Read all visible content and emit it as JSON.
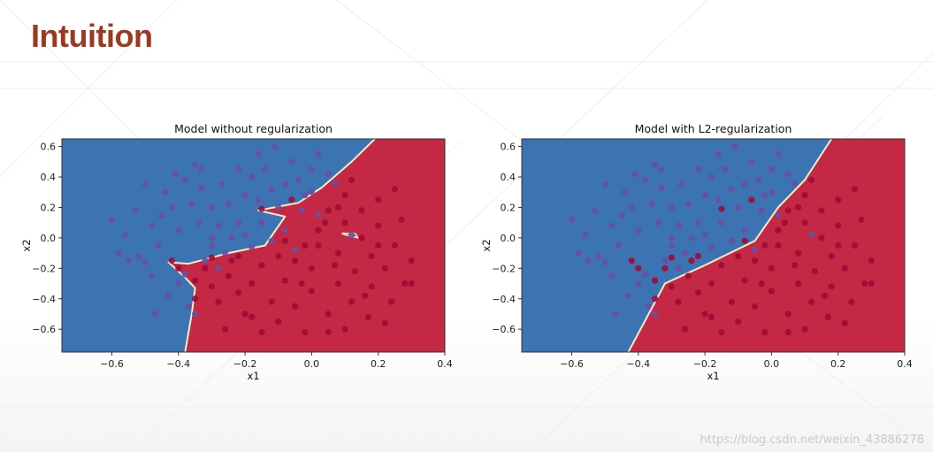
{
  "slide": {
    "title": "Intuition",
    "watermark": "https://blog.csdn.net/weixin_43886278"
  },
  "colors": {
    "title": "#9b3a22",
    "region_blue": "#3b73b3",
    "region_red": "#c42845",
    "boundary": "#f1eec4",
    "point_blue": "#6b4fa0",
    "point_red": "#a00b36"
  },
  "chart_data": [
    {
      "type": "scatter",
      "title": "Model without regularization",
      "xlabel": "x1",
      "ylabel": "x2",
      "xlim": [
        -0.75,
        0.4
      ],
      "ylim": [
        -0.75,
        0.65
      ],
      "xticks": [
        -0.6,
        -0.4,
        -0.2,
        0.0,
        0.2,
        0.4
      ],
      "yticks": [
        -0.6,
        -0.4,
        -0.2,
        0.0,
        0.2,
        0.4,
        0.6
      ],
      "xtick_labels": [
        "−0.6",
        "−0.4",
        "−0.2",
        "0.0",
        "0.2",
        "0.4"
      ],
      "ytick_labels": [
        "−0.6",
        "−0.4",
        "−0.2",
        "0.0",
        "0.2",
        "0.4",
        "0.6"
      ],
      "decision_boundary": [
        [
          -0.38,
          -0.75
        ],
        [
          -0.36,
          -0.5
        ],
        [
          -0.35,
          -0.33
        ],
        [
          -0.38,
          -0.26
        ],
        [
          -0.43,
          -0.16
        ],
        [
          -0.37,
          -0.17
        ],
        [
          -0.25,
          -0.1
        ],
        [
          -0.14,
          -0.05
        ],
        [
          -0.08,
          0.14
        ],
        [
          -0.16,
          0.18
        ],
        [
          -0.04,
          0.23
        ],
        [
          0.03,
          0.33
        ],
        [
          0.12,
          0.5
        ],
        [
          0.19,
          0.65
        ]
      ],
      "decision_island": [
        [
          0.09,
          0.03
        ],
        [
          0.13,
          0.03
        ],
        [
          0.14,
          0.0
        ],
        [
          0.1,
          0.02
        ]
      ],
      "regions": {
        "upper_left": "blue",
        "lower_right": "red"
      }
    },
    {
      "type": "scatter",
      "title": "Model with L2-regularization",
      "xlabel": "x1",
      "ylabel": "x2",
      "xlim": [
        -0.75,
        0.4
      ],
      "ylim": [
        -0.75,
        0.65
      ],
      "xticks": [
        -0.6,
        -0.4,
        -0.2,
        0.0,
        0.2,
        0.4
      ],
      "yticks": [
        -0.6,
        -0.4,
        -0.2,
        0.0,
        0.2,
        0.4,
        0.6
      ],
      "xtick_labels": [
        "−0.6",
        "−0.4",
        "−0.2",
        "0.0",
        "0.2",
        "0.4"
      ],
      "ytick_labels": [
        "−0.6",
        "−0.4",
        "−0.2",
        "0.0",
        "0.2",
        "0.4",
        "0.6"
      ],
      "decision_boundary": [
        [
          -0.43,
          -0.75
        ],
        [
          -0.32,
          -0.3
        ],
        [
          -0.2,
          -0.18
        ],
        [
          -0.05,
          -0.02
        ],
        [
          0.02,
          0.2
        ],
        [
          0.1,
          0.38
        ],
        [
          0.18,
          0.65
        ]
      ],
      "regions": {
        "upper_left": "blue",
        "lower_right": "red"
      }
    }
  ],
  "points": {
    "blue": [
      [
        -0.6,
        0.12
      ],
      [
        -0.56,
        0.02
      ],
      [
        -0.53,
        0.18
      ],
      [
        -0.5,
        0.35
      ],
      [
        -0.48,
        0.08
      ],
      [
        -0.46,
        -0.05
      ],
      [
        -0.52,
        -0.12
      ],
      [
        -0.5,
        -0.16
      ],
      [
        -0.48,
        -0.25
      ],
      [
        -0.44,
        0.3
      ],
      [
        -0.42,
        0.2
      ],
      [
        -0.4,
        0.05
      ],
      [
        -0.38,
        0.38
      ],
      [
        -0.36,
        0.22
      ],
      [
        -0.34,
        0.1
      ],
      [
        -0.35,
        0.48
      ],
      [
        -0.33,
        0.33
      ],
      [
        -0.3,
        0.2
      ],
      [
        -0.28,
        0.08
      ],
      [
        -0.3,
        -0.05
      ],
      [
        -0.32,
        -0.15
      ],
      [
        -0.27,
        0.35
      ],
      [
        -0.25,
        0.22
      ],
      [
        -0.22,
        0.1
      ],
      [
        -0.24,
        0.0
      ],
      [
        -0.2,
        0.28
      ],
      [
        -0.18,
        0.4
      ],
      [
        -0.16,
        0.55
      ],
      [
        -0.14,
        0.45
      ],
      [
        -0.12,
        0.32
      ],
      [
        -0.1,
        0.2
      ],
      [
        -0.08,
        0.05
      ],
      [
        -0.12,
        -0.02
      ],
      [
        -0.06,
        0.5
      ],
      [
        -0.04,
        0.38
      ],
      [
        -0.02,
        0.28
      ],
      [
        0.0,
        0.45
      ],
      [
        0.02,
        0.55
      ],
      [
        0.05,
        0.42
      ],
      [
        -0.15,
        0.1
      ],
      [
        -0.2,
        0.02
      ],
      [
        -0.26,
        -0.1
      ],
      [
        -0.33,
        0.45
      ],
      [
        -0.45,
        0.15
      ],
      [
        -0.55,
        -0.15
      ],
      [
        -0.58,
        -0.1
      ],
      [
        -0.4,
        -0.3
      ],
      [
        -0.43,
        -0.38
      ],
      [
        -0.37,
        -0.45
      ],
      [
        -0.35,
        -0.5
      ],
      [
        -0.47,
        -0.5
      ],
      [
        -0.38,
        -0.24
      ],
      [
        -0.16,
        0.25
      ],
      [
        -0.08,
        0.35
      ],
      [
        0.02,
        0.15
      ],
      [
        -0.03,
        0.18
      ],
      [
        0.12,
        0.02
      ],
      [
        -0.18,
        -0.06
      ],
      [
        0.07,
        0.36
      ],
      [
        -0.05,
        -0.08
      ],
      [
        -0.3,
        0.0
      ],
      [
        -0.22,
        0.45
      ],
      [
        -0.41,
        0.42
      ],
      [
        -0.11,
        0.6
      ],
      [
        -0.28,
        -0.2
      ],
      [
        0.0,
        0.3
      ]
    ],
    "red": [
      [
        -0.42,
        -0.15
      ],
      [
        -0.4,
        -0.2
      ],
      [
        -0.35,
        -0.28
      ],
      [
        -0.3,
        -0.32
      ],
      [
        -0.28,
        -0.42
      ],
      [
        -0.3,
        -0.13
      ],
      [
        -0.25,
        -0.25
      ],
      [
        -0.22,
        -0.36
      ],
      [
        -0.2,
        -0.5
      ],
      [
        -0.18,
        -0.3
      ],
      [
        -0.15,
        -0.18
      ],
      [
        -0.15,
        0.19
      ],
      [
        -0.12,
        -0.42
      ],
      [
        -0.1,
        -0.55
      ],
      [
        -0.08,
        -0.28
      ],
      [
        -0.05,
        -0.15
      ],
      [
        -0.05,
        -0.45
      ],
      [
        -0.02,
        -0.62
      ],
      [
        0.0,
        -0.35
      ],
      [
        0.0,
        -0.2
      ],
      [
        0.02,
        -0.05
      ],
      [
        0.02,
        0.05
      ],
      [
        0.05,
        0.18
      ],
      [
        0.05,
        -0.5
      ],
      [
        0.08,
        -0.3
      ],
      [
        0.08,
        -0.1
      ],
      [
        0.1,
        0.1
      ],
      [
        0.1,
        0.28
      ],
      [
        0.12,
        -0.42
      ],
      [
        0.13,
        -0.22
      ],
      [
        0.15,
        0.0
      ],
      [
        0.15,
        0.18
      ],
      [
        0.18,
        -0.32
      ],
      [
        0.18,
        -0.12
      ],
      [
        0.2,
        0.08
      ],
      [
        0.2,
        0.25
      ],
      [
        0.22,
        -0.2
      ],
      [
        0.24,
        -0.42
      ],
      [
        0.25,
        -0.05
      ],
      [
        0.27,
        0.12
      ],
      [
        0.28,
        -0.3
      ],
      [
        0.3,
        -0.15
      ],
      [
        0.3,
        -0.3
      ],
      [
        -0.26,
        -0.6
      ],
      [
        -0.15,
        -0.62
      ],
      [
        0.05,
        -0.62
      ],
      [
        0.1,
        -0.6
      ],
      [
        0.17,
        -0.52
      ],
      [
        0.22,
        -0.56
      ],
      [
        -0.06,
        0.25
      ],
      [
        -0.08,
        -0.02
      ],
      [
        -0.22,
        -0.12
      ],
      [
        -0.32,
        -0.2
      ],
      [
        0.08,
        0.2
      ],
      [
        0.25,
        0.32
      ],
      [
        0.12,
        0.38
      ],
      [
        -0.18,
        -0.52
      ],
      [
        -0.02,
        -0.05
      ],
      [
        0.07,
        -0.18
      ],
      [
        0.2,
        -0.05
      ],
      [
        -0.1,
        -0.12
      ],
      [
        -0.24,
        -0.15
      ],
      [
        -0.35,
        -0.4
      ],
      [
        0.04,
        0.1
      ],
      [
        0.16,
        -0.38
      ],
      [
        -0.03,
        -0.3
      ]
    ]
  }
}
